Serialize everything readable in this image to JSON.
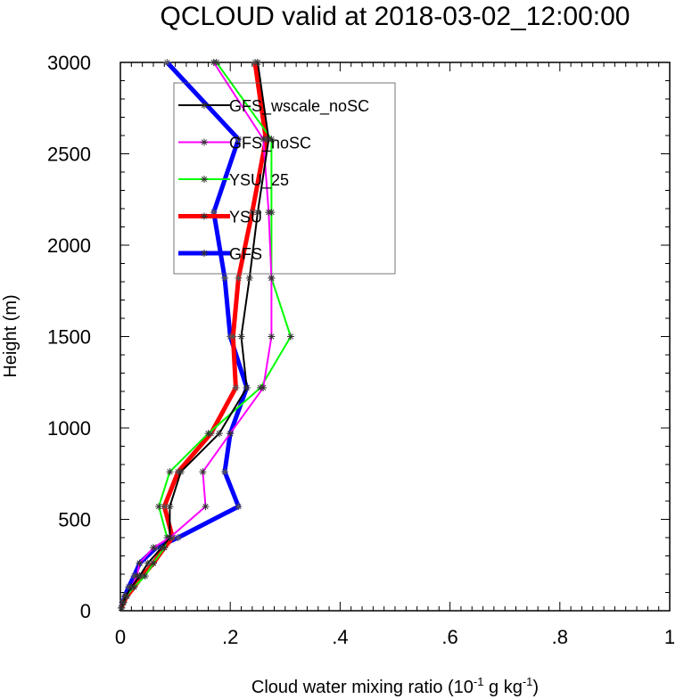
{
  "chart_data": {
    "type": "line",
    "title": "QCLOUD valid at 2018-03-02_12:00:00",
    "xlabel": "Cloud water mixing ratio (10",
    "xlabel_sup1": "-1",
    "xlabel_mid": " g kg",
    "xlabel_sup2": "-1",
    "xlabel_end": ")",
    "ylabel": "Height (m)",
    "xlim": [
      0,
      1
    ],
    "ylim": [
      0,
      3000
    ],
    "x_ticks": [
      0,
      0.2,
      0.4,
      0.6,
      0.8,
      1
    ],
    "x_tick_labels": [
      "0",
      ".2",
      ".4",
      ".6",
      ".8",
      "1"
    ],
    "y_ticks": [
      0,
      500,
      1000,
      1500,
      2000,
      2500,
      3000
    ],
    "y_tick_labels": [
      "0",
      "500",
      "1000",
      "1500",
      "2000",
      "2500",
      "3000"
    ],
    "heights": [
      15,
      45,
      80,
      130,
      190,
      260,
      345,
      400,
      570,
      760,
      970,
      1220,
      1500,
      1820,
      2180,
      2580,
      3000
    ],
    "legend_position": "top-left",
    "series": [
      {
        "name": "GFS_wscale_noSC",
        "color": "#000000",
        "width": 2,
        "values": [
          0.002,
          0.005,
          0.01,
          0.02,
          0.035,
          0.05,
          0.075,
          0.09,
          0.09,
          0.11,
          0.18,
          0.23,
          0.22,
          0.235,
          0.25,
          0.27,
          0.25
        ]
      },
      {
        "name": "GFS_noSC",
        "color": "#ff00ff",
        "width": 2,
        "values": [
          0.002,
          0.005,
          0.01,
          0.02,
          0.03,
          0.035,
          0.06,
          0.09,
          0.155,
          0.15,
          0.2,
          0.26,
          0.275,
          0.275,
          0.27,
          0.26,
          0.17
        ]
      },
      {
        "name": "YSU_25",
        "color": "#00ff00",
        "width": 2,
        "values": [
          0.002,
          0.005,
          0.01,
          0.025,
          0.045,
          0.06,
          0.08,
          0.085,
          0.07,
          0.09,
          0.16,
          0.255,
          0.31,
          0.275,
          0.275,
          0.275,
          0.175
        ]
      },
      {
        "name": "YSU",
        "color": "#ff0000",
        "width": 5,
        "values": [
          0.002,
          0.006,
          0.012,
          0.025,
          0.04,
          0.06,
          0.08,
          0.095,
          0.08,
          0.105,
          0.165,
          0.21,
          0.205,
          0.215,
          0.24,
          0.265,
          0.245
        ]
      },
      {
        "name": "GFS",
        "color": "#0000ff",
        "width": 5,
        "values": [
          0.002,
          0.004,
          0.008,
          0.015,
          0.025,
          0.035,
          0.065,
          0.105,
          0.215,
          0.19,
          0.2,
          0.23,
          0.2,
          0.19,
          0.17,
          0.215,
          0.085
        ]
      }
    ]
  }
}
